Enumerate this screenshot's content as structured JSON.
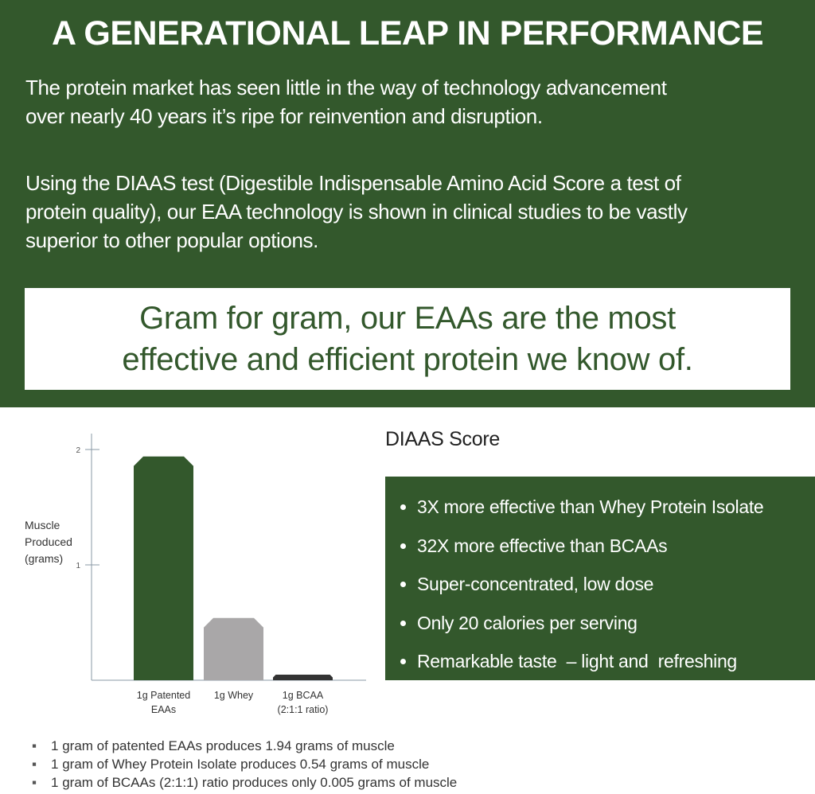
{
  "header": {
    "title": "A GENERATIONAL LEAP IN PERFORMANCE",
    "paragraph1": [
      "The protein market has seen little in the way of technology advancement",
      "over nearly 40 years it’s ripe for reinvention and disruption."
    ],
    "paragraph2": [
      "Using the DIAAS test (Digestible Indispensable Amino Acid Score a test of",
      "protein quality), our EAA technology is shown in clinical studies to be vastly",
      "superior to other popular options."
    ],
    "highlight": [
      "Gram for gram, our EAAs are the most",
      "effective and efficient protein we know of."
    ]
  },
  "chart_data": {
    "type": "bar",
    "title": "",
    "ylabel": "Muscle Produced (grams)",
    "ylabel_lines": [
      "Muscle",
      "Produced",
      "(grams)"
    ],
    "xlabel": "",
    "categories": [
      [
        "1g Patented",
        "EAAs"
      ],
      [
        "1g Whey"
      ],
      [
        "1g BCAA",
        "(2:1:1 ratio)"
      ]
    ],
    "values": [
      1.94,
      0.54,
      0.005
    ],
    "colors": [
      "#33582c",
      "#a9a7a8",
      "#333333"
    ],
    "ylim": [
      0,
      2
    ],
    "yticks": [
      "1",
      "2"
    ],
    "grid": false
  },
  "panel": {
    "heading": "DIAAS Score",
    "bullets": [
      "3X more effective than Whey Protein Isolate",
      "32X more effective than BCAAs",
      "Super-concentrated, low dose",
      "Only 20 calories per serving",
      "Remarkable taste  – light and  refreshing"
    ]
  },
  "footnotes": [
    "1 gram of patented EAAs produces 1.94 grams of muscle",
    "1 gram of Whey Protein Isolate produces 0.54 grams of muscle",
    "1 gram of BCAAs (2:1:1) ratio produces only 0.005 grams of muscle"
  ],
  "colors": {
    "brand_green": "#33582c"
  }
}
